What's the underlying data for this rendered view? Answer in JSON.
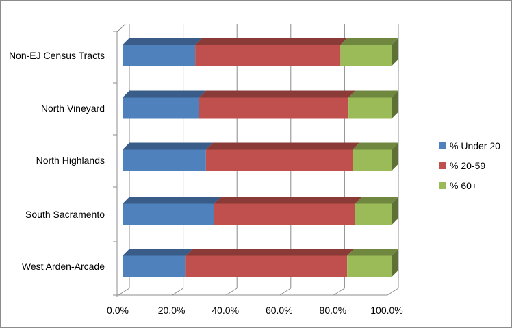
{
  "chart_data": {
    "type": "bar",
    "orientation": "horizontal",
    "stacking": "percent",
    "style": "3d",
    "categories": [
      "Non-EJ Census Tracts",
      "North Vineyard",
      "North Highlands",
      "South Sacramento",
      "West Arden-Arcade"
    ],
    "series": [
      {
        "name": "% Under 20",
        "color": "#4f81bd",
        "values": [
          27.0,
          28.5,
          31.0,
          34.0,
          23.5
        ]
      },
      {
        "name": "% 20-59",
        "color": "#c0504d",
        "values": [
          54.0,
          55.5,
          54.5,
          52.5,
          60.0
        ]
      },
      {
        "name": "% 60+",
        "color": "#9bbb59",
        "values": [
          19.0,
          16.0,
          14.5,
          13.5,
          16.5
        ]
      }
    ],
    "x_ticks": [
      "0.0%",
      "20.0%",
      "40.0%",
      "60.0%",
      "80.0%",
      "100.0%"
    ],
    "xlim": [
      0,
      100
    ],
    "grid": true,
    "legend_position": "right"
  }
}
